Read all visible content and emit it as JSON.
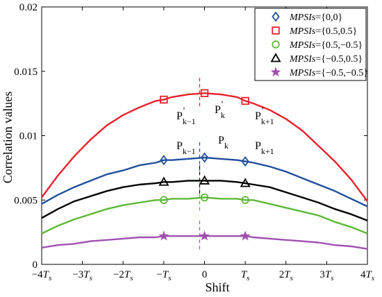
{
  "chart_data": {
    "type": "line",
    "title": "",
    "xlabel": "Shift",
    "ylabel": "Correlation values",
    "ylim": [
      0,
      0.02
    ],
    "xlim": [
      -4,
      4
    ],
    "grid": false,
    "legend_position": "top-right",
    "x_ticks": [
      {
        "v": -4,
        "label": "−4T",
        "sub": "s"
      },
      {
        "v": -3,
        "label": "−3T",
        "sub": "s"
      },
      {
        "v": -2,
        "label": "−2T",
        "sub": "s"
      },
      {
        "v": -1,
        "label": "−T",
        "sub": "s"
      },
      {
        "v": 0,
        "label": "0",
        "sub": ""
      },
      {
        "v": 1,
        "label": "T",
        "sub": "s"
      },
      {
        "v": 2,
        "label": "2T",
        "sub": "s"
      },
      {
        "v": 3,
        "label": "3T",
        "sub": "s"
      },
      {
        "v": 4,
        "label": "4T",
        "sub": "s"
      }
    ],
    "y_ticks": [
      {
        "v": 0,
        "label": "0"
      },
      {
        "v": 0.005,
        "label": "0.005"
      },
      {
        "v": 0.01,
        "label": "0.01"
      },
      {
        "v": 0.015,
        "label": "0.015"
      },
      {
        "v": 0.02,
        "label": "0.02"
      }
    ],
    "x": [
      -4,
      -3.6,
      -3.2,
      -2.8,
      -2.4,
      -2,
      -1.6,
      -1.2,
      -1,
      -0.8,
      -0.4,
      0,
      0.4,
      0.8,
      1,
      1.2,
      1.6,
      2,
      2.4,
      2.8,
      3.2,
      3.6,
      4
    ],
    "series": [
      {
        "name": "MPSIs={0,0}",
        "color": "#1f4e9c",
        "marker": "diamond",
        "values": [
          0.0047,
          0.0054,
          0.006,
          0.0065,
          0.007,
          0.0073,
          0.0077,
          0.0079,
          0.0081,
          0.0081,
          0.0082,
          0.0083,
          0.0082,
          0.0081,
          0.008,
          0.0079,
          0.0076,
          0.0072,
          0.0067,
          0.0062,
          0.0057,
          0.0051,
          0.0045
        ],
        "marker_points": [
          {
            "x": -1,
            "y": 0.0081
          },
          {
            "x": 0,
            "y": 0.0083
          },
          {
            "x": 1,
            "y": 0.008
          }
        ]
      },
      {
        "name": "MPSIs={0.5,0.5}",
        "color": "#e8202a",
        "marker": "square",
        "values": [
          0.0052,
          0.0069,
          0.0084,
          0.0097,
          0.0108,
          0.0116,
          0.0122,
          0.0127,
          0.0128,
          0.013,
          0.0132,
          0.0133,
          0.0132,
          0.013,
          0.0127,
          0.0125,
          0.012,
          0.0113,
          0.0104,
          0.0092,
          0.008,
          0.0066,
          0.0049
        ],
        "marker_points": [
          {
            "x": -1,
            "y": 0.0128
          },
          {
            "x": 0,
            "y": 0.0133
          },
          {
            "x": 1,
            "y": 0.0127
          }
        ]
      },
      {
        "name": "MPSIs={0.5,−0.5}",
        "color": "#5cb834",
        "marker": "circle",
        "values": [
          0.0024,
          0.003,
          0.0035,
          0.0039,
          0.0043,
          0.0046,
          0.0048,
          0.005,
          0.005,
          0.0051,
          0.0051,
          0.0052,
          0.0051,
          0.0051,
          0.005,
          0.005,
          0.0047,
          0.0044,
          0.0041,
          0.0038,
          0.0033,
          0.0029,
          0.0024
        ],
        "marker_points": [
          {
            "x": -1,
            "y": 0.005
          },
          {
            "x": 0,
            "y": 0.0052
          },
          {
            "x": 1,
            "y": 0.005
          }
        ]
      },
      {
        "name": "MPSIs={−0.5,0.5}",
        "color": "#000000",
        "marker": "triangle",
        "values": [
          0.0036,
          0.0043,
          0.0049,
          0.0053,
          0.0057,
          0.006,
          0.0062,
          0.0063,
          0.0064,
          0.0064,
          0.0065,
          0.0065,
          0.0065,
          0.0064,
          0.0063,
          0.0062,
          0.006,
          0.0056,
          0.0052,
          0.0048,
          0.0043,
          0.0039,
          0.0034
        ],
        "marker_points": [
          {
            "x": -1,
            "y": 0.0064
          },
          {
            "x": 0,
            "y": 0.0065
          },
          {
            "x": 1,
            "y": 0.0063
          }
        ]
      },
      {
        "name": "MPSIs={−0.5,−0.5}",
        "color": "#a050b0",
        "marker": "star",
        "values": [
          0.0013,
          0.0015,
          0.0016,
          0.0018,
          0.0019,
          0.002,
          0.0021,
          0.0021,
          0.0022,
          0.0022,
          0.0022,
          0.0022,
          0.0022,
          0.0022,
          0.0022,
          0.0021,
          0.002,
          0.0019,
          0.0018,
          0.0017,
          0.0015,
          0.0014,
          0.0012
        ],
        "marker_points": [
          {
            "x": -1,
            "y": 0.0022
          },
          {
            "x": 0,
            "y": 0.0022
          },
          {
            "x": 1,
            "y": 0.0022
          }
        ]
      }
    ],
    "legend": {
      "entries": [
        {
          "prefix": "MPSIs",
          "suffix": "={0,0}"
        },
        {
          "prefix": "MPSIs",
          "suffix": "={0.5,0.5}"
        },
        {
          "prefix": "MPSIs",
          "suffix": "={0.5,−0.5}"
        },
        {
          "prefix": "MPSIs",
          "suffix": "={−0.5,0.5}"
        },
        {
          "prefix": "MPSIs",
          "suffix": "={−0.5,−0.5}"
        }
      ]
    },
    "annotations": [
      {
        "key": "pk1_prime",
        "main": "P",
        "sub": "k−1",
        "sup": "ʼ"
      },
      {
        "key": "pk_prime",
        "main": "P",
        "sub": "k",
        "sup": "ʼ"
      },
      {
        "key": "pk1p_prime",
        "main": "P",
        "sub": "k+1",
        "sup": "ʼ"
      },
      {
        "key": "pk1",
        "main": "P",
        "sub": "k−1",
        "sup": ""
      },
      {
        "key": "pk",
        "main": "P",
        "sub": "k",
        "sup": ""
      },
      {
        "key": "pk1p",
        "main": "P",
        "sub": "k+1",
        "sup": ""
      }
    ],
    "peak_offset": -0.12
  }
}
